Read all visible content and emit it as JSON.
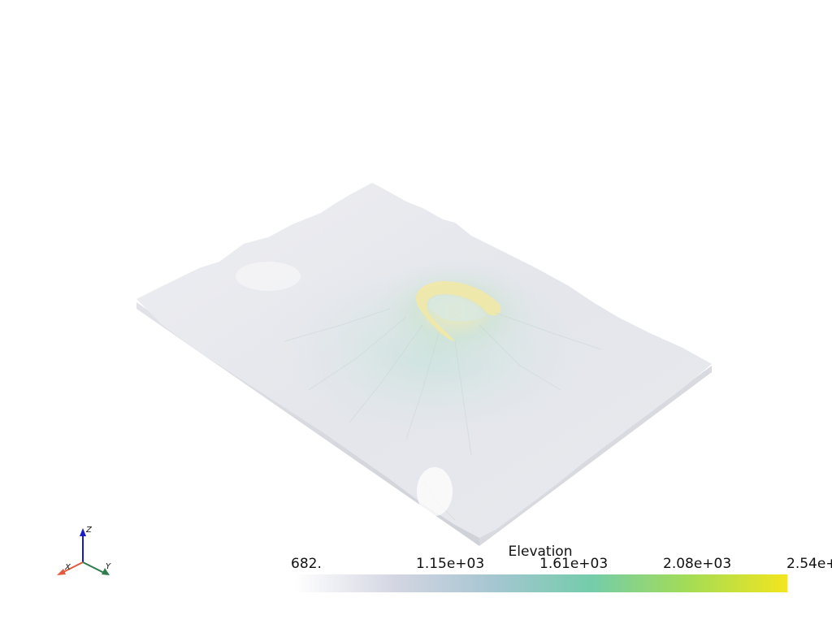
{
  "colorbar": {
    "title": "Elevation",
    "ticks": [
      "682.",
      "1.15e+03",
      "1.61e+03",
      "2.08e+03",
      "2.54e+"
    ],
    "min": 682,
    "max": 2540,
    "colormap": [
      "#ffffff",
      "#d4d6e2",
      "#a6c6d2",
      "#74ccab",
      "#a4dc55",
      "#f3e51e"
    ]
  },
  "axes": {
    "x": "X",
    "y": "Y",
    "z": "Z",
    "x_color": "#e45a3c",
    "y_color": "#2e7d4a",
    "z_color": "#1a1acc"
  }
}
